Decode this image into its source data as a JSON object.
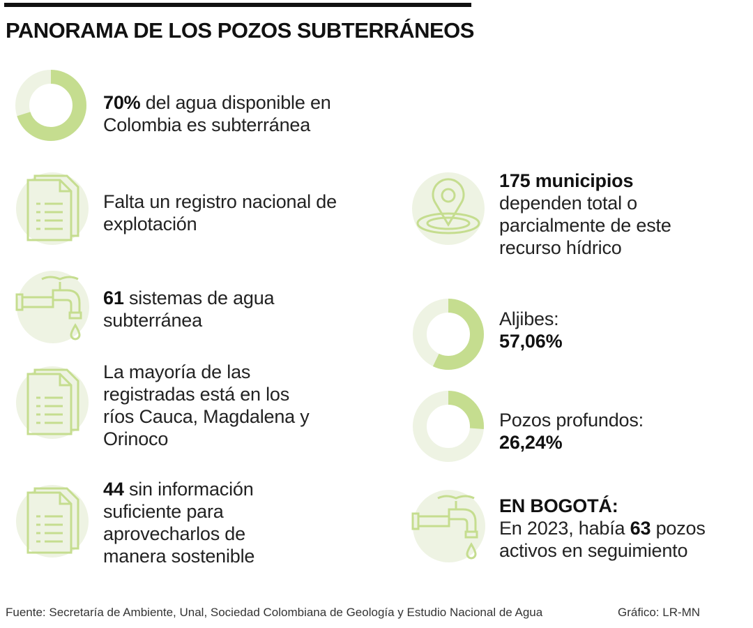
{
  "title": "PANORAMA DE LOS POZOS SUBTERRÁNEOS",
  "colors": {
    "accent": "#c5dd8f",
    "light": "#eef3e3",
    "text": "#222222"
  },
  "left": [
    {
      "icon": "donut-chart-icon",
      "percent": 70,
      "bold": "70%",
      "text": " del agua disponible en Colombia es subterránea"
    },
    {
      "icon": "document-icon",
      "bold": "",
      "text": "Falta un registro nacional de explotación"
    },
    {
      "icon": "water-faucet-icon",
      "bold": "61",
      "text": " sistemas de agua subterránea"
    },
    {
      "icon": "document-icon",
      "bold": "",
      "text": "La mayoría de las registradas está en los ríos Cauca, Magdalena y Orinoco"
    },
    {
      "icon": "document-icon",
      "bold": "44",
      "text": " sin información suficiente para aprovecharlos de manera sostenible"
    }
  ],
  "right": {
    "municipios": {
      "icon": "location-pin-icon",
      "bold": "175 municipios",
      "text": "dependen total o parcialmente de este recurso hídrico"
    },
    "aljibes": {
      "icon": "donut-chart-icon",
      "percent": 57.06,
      "label": "Aljibes:",
      "value": "57,06%"
    },
    "pozos": {
      "icon": "donut-chart-icon",
      "percent": 26.24,
      "label": "Pozos profundos:",
      "value": "26,24%"
    },
    "bogota": {
      "icon": "water-faucet-icon",
      "heading": "EN BOGOTÁ:",
      "pre": "En 2023, había ",
      "bold": "63",
      "post": " pozos activos en seguimiento"
    }
  },
  "footer": {
    "source": "Fuente: Secretaría de Ambiente, Unal, Sociedad Colombiana de Geología y Estudio Nacional de Agua",
    "credit": "Gráfico: LR-MN"
  }
}
